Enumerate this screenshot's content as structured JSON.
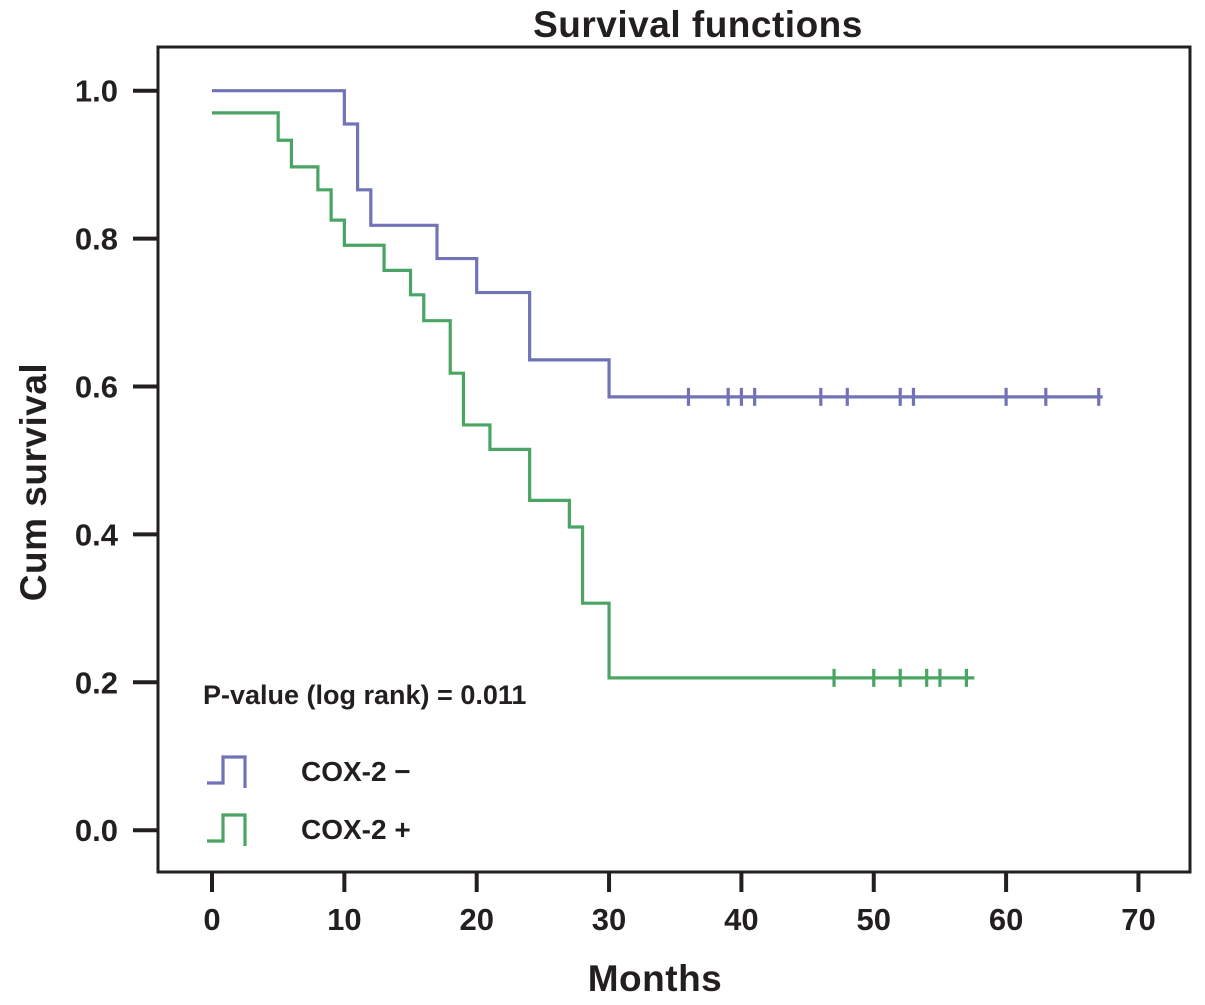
{
  "figure_title": "Survival functions",
  "chart_data": {
    "type": "line",
    "subtype": "kaplan-meier-step",
    "title": "Survival functions",
    "xlabel": "Months",
    "ylabel": "Cum survival",
    "xlim": [
      0,
      70
    ],
    "ylim": [
      0.0,
      1.0
    ],
    "xticks": [
      "0",
      "10",
      "20",
      "30",
      "40",
      "50",
      "60",
      "70"
    ],
    "yticks": [
      "0.0",
      "0.2",
      "0.4",
      "0.6",
      "0.8",
      "1.0"
    ],
    "grid": "off",
    "legend_position": "lower-left",
    "annotation": "P-value (log rank) = 0.011",
    "series": [
      {
        "name": "COX-2  −",
        "color": "#7173b6",
        "steps": [
          [
            0,
            1.0
          ],
          [
            10,
            0.955
          ],
          [
            11,
            0.866
          ],
          [
            12,
            0.818
          ],
          [
            17,
            0.773
          ],
          [
            20,
            0.727
          ],
          [
            24,
            0.636
          ],
          [
            30,
            0.586
          ]
        ],
        "end_x": 67.3,
        "censored": [
          [
            36,
            0.586
          ],
          [
            39,
            0.586
          ],
          [
            40,
            0.586
          ],
          [
            41,
            0.586
          ],
          [
            46,
            0.586
          ],
          [
            48,
            0.586
          ],
          [
            52,
            0.586
          ],
          [
            53,
            0.586
          ],
          [
            60,
            0.586
          ],
          [
            63,
            0.586
          ],
          [
            67,
            0.586
          ]
        ]
      },
      {
        "name": "COX-2  +",
        "color": "#4aa565",
        "steps": [
          [
            0,
            0.97
          ],
          [
            5,
            0.933
          ],
          [
            6,
            0.897
          ],
          [
            8,
            0.866
          ],
          [
            9,
            0.825
          ],
          [
            10,
            0.791
          ],
          [
            13,
            0.757
          ],
          [
            15,
            0.724
          ],
          [
            16,
            0.689
          ],
          [
            18,
            0.618
          ],
          [
            19,
            0.548
          ],
          [
            21,
            0.515
          ],
          [
            24,
            0.446
          ],
          [
            27,
            0.41
          ],
          [
            28,
            0.307
          ],
          [
            30,
            0.206
          ]
        ],
        "end_x": 57.6,
        "censored": [
          [
            47,
            0.206
          ],
          [
            50,
            0.206
          ],
          [
            52,
            0.206
          ],
          [
            54,
            0.206
          ],
          [
            55,
            0.206
          ],
          [
            57,
            0.206
          ]
        ]
      }
    ],
    "axis_color": "#231f20"
  }
}
